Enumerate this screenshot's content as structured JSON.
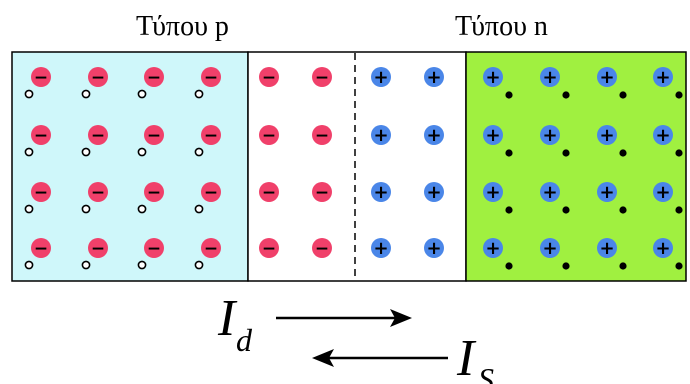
{
  "labels": {
    "p_type": "Τύπου p",
    "n_type": "Τύπου n"
  },
  "currents": {
    "drift": {
      "base": "I",
      "subscript": "d",
      "direction": "right"
    },
    "diffusion": {
      "base": "I",
      "subscript": "S",
      "direction": "left"
    }
  },
  "symbols": {
    "negative_ion": "−",
    "positive_ion": "+"
  },
  "lattice": {
    "rows": 4,
    "p_region_columns": 4,
    "depletion_negative_columns": 2,
    "depletion_positive_columns": 2,
    "n_region_columns": 4
  },
  "colors": {
    "p_region": "#cff7fa",
    "n_region": "#a0f040",
    "depletion": "#ffffff",
    "negative_ion": "#f0406a",
    "positive_ion": "#4a86e8",
    "hole": "#ffffff",
    "electron": "#000000"
  }
}
